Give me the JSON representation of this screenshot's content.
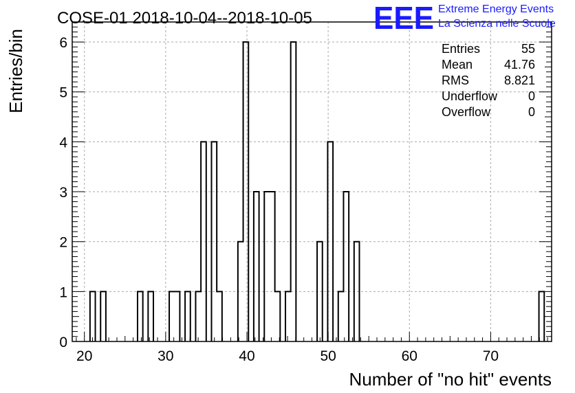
{
  "chart_data": {
    "type": "bar",
    "title": "COSE-01 2018-10-04--2018-10-05",
    "xlabel": "Number of \"no hit\" events",
    "ylabel": "Entries/bin",
    "xlim": [
      18.5,
      77.5
    ],
    "ylim": [
      0,
      6.4
    ],
    "bin_width": 0.65,
    "x_ticks": [
      20,
      30,
      40,
      50,
      60,
      70
    ],
    "y_ticks": [
      0,
      1,
      2,
      3,
      4,
      5,
      6
    ],
    "grid": true,
    "bins": [
      {
        "x": 20.69,
        "y": 1
      },
      {
        "x": 21.99,
        "y": 1
      },
      {
        "x": 26.54,
        "y": 1
      },
      {
        "x": 27.84,
        "y": 1
      },
      {
        "x": 30.44,
        "y": 1
      },
      {
        "x": 31.09,
        "y": 1
      },
      {
        "x": 32.39,
        "y": 1
      },
      {
        "x": 33.69,
        "y": 1
      },
      {
        "x": 34.34,
        "y": 4
      },
      {
        "x": 35.64,
        "y": 4
      },
      {
        "x": 36.29,
        "y": 1
      },
      {
        "x": 38.89,
        "y": 2
      },
      {
        "x": 39.54,
        "y": 6
      },
      {
        "x": 40.84,
        "y": 3
      },
      {
        "x": 42.14,
        "y": 3
      },
      {
        "x": 42.79,
        "y": 3
      },
      {
        "x": 43.44,
        "y": 1
      },
      {
        "x": 44.74,
        "y": 1
      },
      {
        "x": 45.39,
        "y": 6
      },
      {
        "x": 48.64,
        "y": 2
      },
      {
        "x": 49.94,
        "y": 4
      },
      {
        "x": 51.24,
        "y": 1
      },
      {
        "x": 51.89,
        "y": 3
      },
      {
        "x": 53.19,
        "y": 2
      },
      {
        "x": 75.94,
        "y": 1
      }
    ]
  },
  "stats": [
    {
      "label": "Entries",
      "value": "55"
    },
    {
      "label": "Mean",
      "value": "41.76"
    },
    {
      "label": "RMS",
      "value": "8.821"
    },
    {
      "label": "Underflow",
      "value": "0"
    },
    {
      "label": "Overflow",
      "value": "0"
    }
  ],
  "logo": {
    "mark": "EEE",
    "line1": "Extreme Energy Events",
    "line2": "La Scienza nelle Scuole"
  },
  "colors": {
    "logo": "#1a1aff",
    "line": "#000000",
    "grid": "#a8a8a8"
  }
}
